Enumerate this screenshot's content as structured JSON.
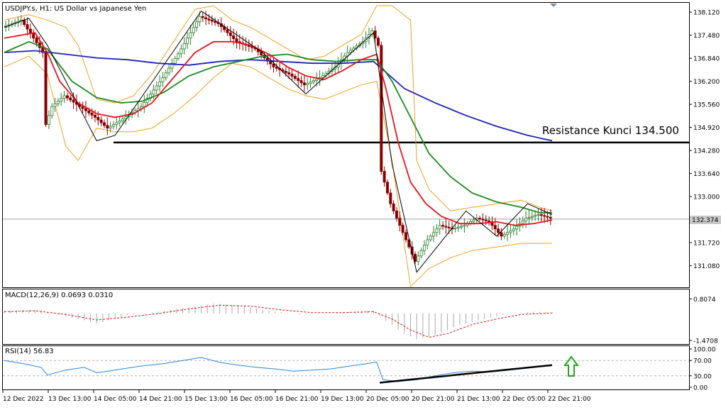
{
  "header": {
    "main_title": "USDJPY.s, H1:  US Dollar vs Japanese Yen",
    "macd_title": "MACD(12,26,9) 0.0693 0.0310",
    "rsi_title": "RSI(14) 56.83"
  },
  "annotation": {
    "resistance_text": "Resistance Kunci 134.500",
    "resistance_level": 134.5
  },
  "price_marker": "132.374",
  "colors": {
    "candle_up": "#2e7d32",
    "candle_down": "#8b0000",
    "ma_fast": "#e8141d",
    "ma_mid": "#1a8a1a",
    "ma_slow": "#1c23b5",
    "bollinger": "#f2a020",
    "zigzag": "#000000",
    "macd_hist": "#a8a8a8",
    "macd_signal": "#d01818",
    "rsi_line": "#2a84d4",
    "arrow": "#1ea81e"
  },
  "chart_data": [
    {
      "type": "candlestick",
      "title": "USDJPY.s, H1:  US Dollar vs Japanese Yen",
      "y_ticks": [
        "138.120",
        "137.480",
        "136.840",
        "136.200",
        "135.560",
        "134.920",
        "134.280",
        "133.640",
        "133.000",
        "132.374",
        "131.720",
        "131.080"
      ],
      "ylim": [
        130.5,
        138.3
      ],
      "x_ticks": [
        "12 Dec 2022",
        "13 Dec 13:00",
        "14 Dec 05:00",
        "14 Dec 21:00",
        "15 Dec 13:00",
        "16 Dec 05:00",
        "16 Dec 21:00",
        "19 Dec 13:00",
        "20 Dec 05:00",
        "20 Dec 21:00",
        "21 Dec 13:00",
        "22 Dec 05:00",
        "22 Dec 21:00"
      ],
      "price_path": [
        [
          0,
          137.7
        ],
        [
          6,
          137.9
        ],
        [
          10,
          137.4
        ],
        [
          13,
          137.0
        ],
        [
          14,
          135.0
        ],
        [
          16,
          135.5
        ],
        [
          20,
          135.8
        ],
        [
          25,
          135.5
        ],
        [
          30,
          135.2
        ],
        [
          34,
          134.9
        ],
        [
          38,
          135.1
        ],
        [
          45,
          135.5
        ],
        [
          52,
          136.3
        ],
        [
          58,
          137.1
        ],
        [
          64,
          138.0
        ],
        [
          70,
          137.8
        ],
        [
          76,
          137.3
        ],
        [
          82,
          137.1
        ],
        [
          88,
          136.6
        ],
        [
          93,
          136.4
        ],
        [
          98,
          136.1
        ],
        [
          103,
          136.3
        ],
        [
          108,
          136.6
        ],
        [
          112,
          137.0
        ],
        [
          117,
          137.3
        ],
        [
          120,
          137.6
        ],
        [
          122,
          137.2
        ],
        [
          123,
          133.7
        ],
        [
          126,
          132.8
        ],
        [
          130,
          132.0
        ],
        [
          134,
          131.2
        ],
        [
          138,
          131.8
        ],
        [
          142,
          132.2
        ],
        [
          146,
          132.1
        ],
        [
          150,
          132.2
        ],
        [
          154,
          132.4
        ],
        [
          158,
          132.3
        ],
        [
          162,
          131.9
        ],
        [
          166,
          132.1
        ],
        [
          170,
          132.4
        ],
        [
          174,
          132.5
        ],
        [
          178,
          132.4
        ]
      ],
      "series": [
        {
          "name": "MA fast",
          "values": [
            [
              0,
              137.4
            ],
            [
              10,
              137.55
            ],
            [
              14,
              137.0
            ],
            [
              18,
              136.2
            ],
            [
              24,
              135.6
            ],
            [
              30,
              135.3
            ],
            [
              36,
              135.2
            ],
            [
              42,
              135.3
            ],
            [
              48,
              135.6
            ],
            [
              55,
              136.3
            ],
            [
              62,
              137.0
            ],
            [
              68,
              137.3
            ],
            [
              74,
              137.3
            ],
            [
              80,
              137.2
            ],
            [
              86,
              136.95
            ],
            [
              92,
              136.6
            ],
            [
              98,
              136.35
            ],
            [
              104,
              136.25
            ],
            [
              110,
              136.5
            ],
            [
              116,
              136.8
            ],
            [
              121,
              136.95
            ],
            [
              124,
              136.0
            ],
            [
              128,
              134.5
            ],
            [
              132,
              133.4
            ],
            [
              137,
              132.8
            ],
            [
              142,
              132.45
            ],
            [
              148,
              132.25
            ],
            [
              154,
              132.25
            ],
            [
              160,
              132.3
            ],
            [
              166,
              132.2
            ],
            [
              172,
              132.25
            ],
            [
              178,
              132.35
            ]
          ]
        },
        {
          "name": "MA mid",
          "values": [
            [
              0,
              137.0
            ],
            [
              8,
              137.3
            ],
            [
              14,
              137.1
            ],
            [
              22,
              136.2
            ],
            [
              30,
              135.75
            ],
            [
              38,
              135.6
            ],
            [
              45,
              135.65
            ],
            [
              52,
              135.9
            ],
            [
              60,
              136.35
            ],
            [
              68,
              136.6
            ],
            [
              76,
              136.75
            ],
            [
              84,
              136.9
            ],
            [
              92,
              136.95
            ],
            [
              100,
              136.8
            ],
            [
              108,
              136.75
            ],
            [
              115,
              136.8
            ],
            [
              121,
              136.8
            ],
            [
              126,
              136.2
            ],
            [
              132,
              135.2
            ],
            [
              138,
              134.2
            ],
            [
              145,
              133.55
            ],
            [
              152,
              133.1
            ],
            [
              160,
              132.85
            ],
            [
              168,
              132.7
            ],
            [
              174,
              132.55
            ],
            [
              178,
              132.55
            ]
          ]
        },
        {
          "name": "MA slow",
          "values": [
            [
              0,
              137.0
            ],
            [
              10,
              137.05
            ],
            [
              20,
              136.95
            ],
            [
              30,
              136.85
            ],
            [
              40,
              136.8
            ],
            [
              50,
              136.7
            ],
            [
              60,
              136.65
            ],
            [
              70,
              136.75
            ],
            [
              80,
              136.8
            ],
            [
              90,
              136.75
            ],
            [
              100,
              136.7
            ],
            [
              110,
              136.7
            ],
            [
              120,
              136.75
            ],
            [
              130,
              136.0
            ],
            [
              140,
              135.6
            ],
            [
              150,
              135.25
            ],
            [
              160,
              134.95
            ],
            [
              170,
              134.7
            ],
            [
              178,
              134.55
            ]
          ]
        },
        {
          "name": "BB upper",
          "values": [
            [
              0,
              137.9
            ],
            [
              8,
              138.05
            ],
            [
              14,
              137.9
            ],
            [
              20,
              137.7
            ],
            [
              24,
              137.2
            ],
            [
              30,
              135.7
            ],
            [
              36,
              135.6
            ],
            [
              42,
              135.8
            ],
            [
              48,
              136.4
            ],
            [
              55,
              137.3
            ],
            [
              62,
              138.2
            ],
            [
              68,
              138.3
            ],
            [
              74,
              137.9
            ],
            [
              80,
              137.7
            ],
            [
              86,
              137.4
            ],
            [
              92,
              137.1
            ],
            [
              98,
              136.8
            ],
            [
              104,
              136.9
            ],
            [
              110,
              137.2
            ],
            [
              116,
              137.5
            ],
            [
              121,
              138.3
            ],
            [
              126,
              138.3
            ],
            [
              132,
              137.9
            ],
            [
              134,
              134.0
            ],
            [
              138,
              133.2
            ],
            [
              145,
              132.6
            ],
            [
              152,
              132.7
            ],
            [
              160,
              132.8
            ],
            [
              168,
              132.9
            ],
            [
              174,
              132.7
            ],
            [
              178,
              132.6
            ]
          ]
        },
        {
          "name": "BB lower",
          "values": [
            [
              0,
              136.6
            ],
            [
              8,
              136.9
            ],
            [
              14,
              136.4
            ],
            [
              20,
              134.4
            ],
            [
              24,
              134.0
            ],
            [
              30,
              134.9
            ],
            [
              36,
              134.8
            ],
            [
              42,
              134.8
            ],
            [
              48,
              134.9
            ],
            [
              55,
              135.3
            ],
            [
              62,
              135.8
            ],
            [
              68,
              136.3
            ],
            [
              74,
              136.7
            ],
            [
              80,
              136.6
            ],
            [
              86,
              136.3
            ],
            [
              92,
              136.0
            ],
            [
              98,
              135.8
            ],
            [
              104,
              135.7
            ],
            [
              110,
              135.9
            ],
            [
              116,
              136.1
            ],
            [
              121,
              136.2
            ],
            [
              126,
              134.0
            ],
            [
              132,
              130.5
            ],
            [
              138,
              131.0
            ],
            [
              145,
              131.3
            ],
            [
              152,
              131.5
            ],
            [
              160,
              131.6
            ],
            [
              168,
              131.7
            ],
            [
              178,
              131.7
            ]
          ]
        },
        {
          "name": "ZigZag",
          "values": [
            [
              0,
              137.7
            ],
            [
              8,
              137.95
            ],
            [
              14,
              137.2
            ],
            [
              30,
              134.55
            ],
            [
              36,
              134.7
            ],
            [
              64,
              138.15
            ],
            [
              84,
              137.0
            ],
            [
              98,
              135.85
            ],
            [
              120,
              137.55
            ],
            [
              126,
              133.9
            ],
            [
              134,
              130.9
            ],
            [
              150,
              132.6
            ],
            [
              160,
              131.9
            ],
            [
              170,
              132.8
            ],
            [
              178,
              132.5
            ]
          ]
        }
      ]
    },
    {
      "type": "histogram",
      "title": "MACD(12,26,9) 0.0693 0.0310",
      "y_ticks": [
        "0.8074",
        "-1.4708"
      ],
      "ylim": [
        -1.55,
        0.85
      ],
      "histogram": [
        [
          0,
          0.15
        ],
        [
          10,
          0.2
        ],
        [
          20,
          -0.15
        ],
        [
          30,
          -0.55
        ],
        [
          40,
          -0.1
        ],
        [
          50,
          0.1
        ],
        [
          60,
          0.35
        ],
        [
          68,
          0.55
        ],
        [
          76,
          0.45
        ],
        [
          86,
          0.15
        ],
        [
          96,
          -0.05
        ],
        [
          106,
          0.0
        ],
        [
          114,
          0.1
        ],
        [
          120,
          0.15
        ],
        [
          124,
          -0.4
        ],
        [
          130,
          -1.1
        ],
        [
          134,
          -1.4
        ],
        [
          140,
          -1.2
        ],
        [
          148,
          -0.6
        ],
        [
          156,
          -0.3
        ],
        [
          164,
          0.0
        ],
        [
          172,
          0.1
        ],
        [
          178,
          0.07
        ]
      ],
      "signal": [
        [
          0,
          0.1
        ],
        [
          10,
          0.15
        ],
        [
          20,
          -0.05
        ],
        [
          30,
          -0.35
        ],
        [
          40,
          -0.2
        ],
        [
          50,
          0.0
        ],
        [
          60,
          0.25
        ],
        [
          70,
          0.45
        ],
        [
          80,
          0.4
        ],
        [
          90,
          0.2
        ],
        [
          100,
          0.05
        ],
        [
          110,
          0.05
        ],
        [
          120,
          0.1
        ],
        [
          126,
          -0.3
        ],
        [
          132,
          -0.9
        ],
        [
          138,
          -1.3
        ],
        [
          144,
          -1.1
        ],
        [
          152,
          -0.6
        ],
        [
          160,
          -0.3
        ],
        [
          168,
          -0.05
        ],
        [
          178,
          0.03
        ]
      ]
    },
    {
      "type": "line",
      "title": "RSI(14) 56.83",
      "y_ticks": [
        "100.00",
        "70.00",
        "30.00",
        "0.00"
      ],
      "ylim": [
        0,
        100
      ],
      "values": [
        [
          0,
          70
        ],
        [
          6,
          62
        ],
        [
          12,
          52
        ],
        [
          14,
          32
        ],
        [
          20,
          45
        ],
        [
          26,
          52
        ],
        [
          30,
          38
        ],
        [
          36,
          45
        ],
        [
          44,
          55
        ],
        [
          52,
          62
        ],
        [
          58,
          70
        ],
        [
          64,
          78
        ],
        [
          70,
          65
        ],
        [
          76,
          58
        ],
        [
          82,
          52
        ],
        [
          88,
          48
        ],
        [
          94,
          42
        ],
        [
          100,
          45
        ],
        [
          106,
          48
        ],
        [
          112,
          55
        ],
        [
          118,
          62
        ],
        [
          121,
          66
        ],
        [
          123,
          20
        ],
        [
          128,
          15
        ],
        [
          134,
          20
        ],
        [
          140,
          30
        ],
        [
          146,
          38
        ],
        [
          152,
          42
        ],
        [
          158,
          40
        ],
        [
          164,
          45
        ],
        [
          170,
          50
        ],
        [
          176,
          57
        ],
        [
          178,
          56.83
        ]
      ],
      "trendline": [
        [
          122,
          12
        ],
        [
          178,
          58
        ]
      ]
    }
  ]
}
